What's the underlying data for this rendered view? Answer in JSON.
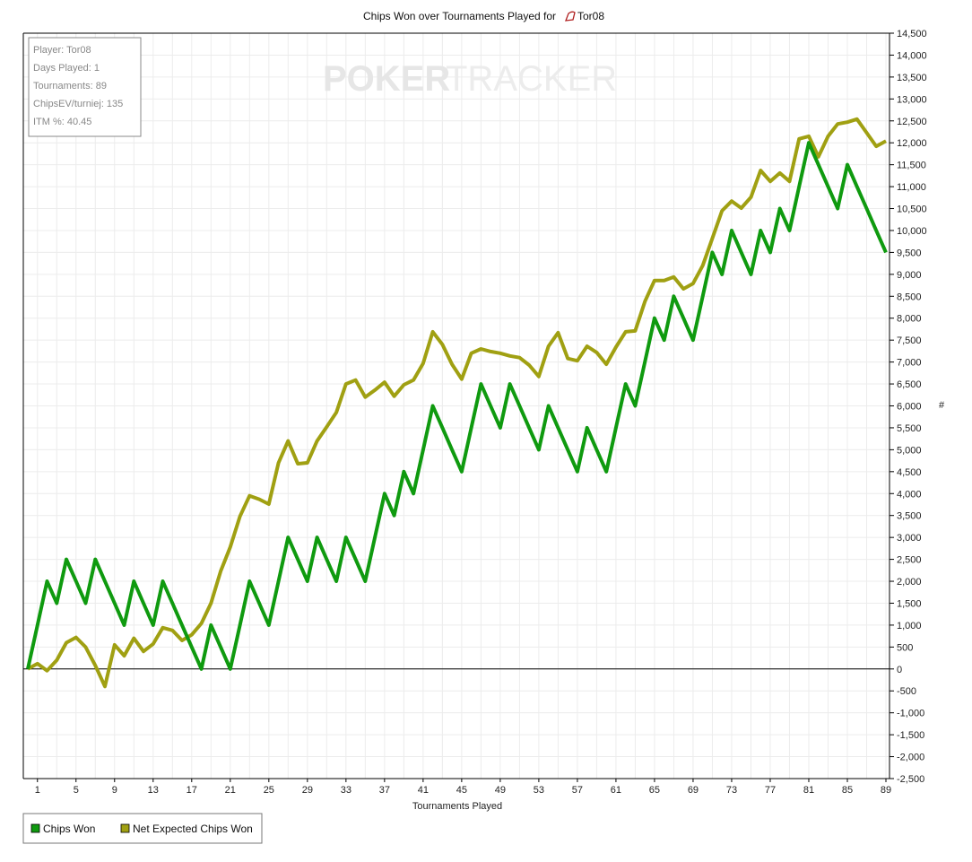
{
  "chart_data": {
    "type": "line",
    "title": "Chips Won over Tournaments Played for",
    "player_name": "Tor08",
    "xlabel": "Tournaments Played",
    "ylabel": "#",
    "xlim": [
      0,
      89
    ],
    "ylim": [
      -2500,
      14500
    ],
    "ytick_step": 500,
    "xticks": [
      1,
      5,
      9,
      13,
      17,
      21,
      25,
      29,
      33,
      37,
      41,
      45,
      49,
      53,
      57,
      61,
      65,
      69,
      73,
      77,
      81,
      85,
      89
    ],
    "grid": true,
    "legend_position": "bottom-left",
    "x": [
      0,
      1,
      2,
      3,
      4,
      5,
      6,
      7,
      8,
      9,
      10,
      11,
      12,
      13,
      14,
      15,
      16,
      17,
      18,
      19,
      20,
      21,
      22,
      23,
      24,
      25,
      26,
      27,
      28,
      29,
      30,
      31,
      32,
      33,
      34,
      35,
      36,
      37,
      38,
      39,
      40,
      41,
      42,
      43,
      44,
      45,
      46,
      47,
      48,
      49,
      50,
      51,
      52,
      53,
      54,
      55,
      56,
      57,
      58,
      59,
      60,
      61,
      62,
      63,
      64,
      65,
      66,
      67,
      68,
      69,
      70,
      71,
      72,
      73,
      74,
      75,
      76,
      77,
      78,
      79,
      80,
      81,
      82,
      83,
      84,
      85,
      86,
      87,
      88,
      89
    ],
    "series": [
      {
        "name": "Chips Won",
        "color": "#0f9a0f",
        "values": [
          0,
          1000,
          2000,
          1500,
          2500,
          2000,
          1500,
          2500,
          2000,
          1500,
          1000,
          2000,
          1500,
          1000,
          2000,
          1500,
          1000,
          500,
          0,
          1000,
          500,
          0,
          1000,
          2000,
          1500,
          1000,
          2000,
          3000,
          2500,
          2000,
          3000,
          2500,
          2000,
          3000,
          2500,
          2000,
          3000,
          4000,
          3500,
          4500,
          4000,
          5000,
          6000,
          5500,
          5000,
          4500,
          5500,
          6500,
          6000,
          5500,
          6500,
          6000,
          5500,
          5000,
          6000,
          5500,
          5000,
          4500,
          5500,
          5000,
          4500,
          5500,
          6500,
          6000,
          7000,
          8000,
          7500,
          8500,
          8000,
          7500,
          8500,
          9500,
          9000,
          10000,
          9500,
          9000,
          10000,
          9500,
          10500,
          10000,
          11000,
          12000,
          11500,
          11000,
          10500,
          11500,
          11000,
          10500,
          10000,
          9500
        ]
      },
      {
        "name": "Net Expected Chips Won",
        "color": "#a0a012",
        "values": [
          0,
          120,
          -40,
          200,
          600,
          720,
          500,
          80,
          -400,
          550,
          300,
          700,
          400,
          570,
          940,
          880,
          650,
          780,
          1040,
          1500,
          2230,
          2780,
          3480,
          3950,
          3870,
          3760,
          4700,
          5200,
          4680,
          4700,
          5200,
          5520,
          5850,
          6500,
          6590,
          6200,
          6360,
          6540,
          6220,
          6480,
          6590,
          6970,
          7690,
          7400,
          6950,
          6610,
          7200,
          7300,
          7240,
          7200,
          7140,
          7100,
          6930,
          6670,
          7360,
          7670,
          7080,
          7030,
          7360,
          7220,
          6950,
          7340,
          7690,
          7710,
          8380,
          8860,
          8860,
          8940,
          8670,
          8790,
          9200,
          9820,
          10450,
          10670,
          10510,
          10760,
          11370,
          11120,
          11310,
          11120,
          12090,
          12150,
          11680,
          12150,
          12430,
          12470,
          12540,
          12230,
          11920,
          12040
        ]
      }
    ]
  },
  "stats_box": {
    "player": "Player: Tor08",
    "days_played": "Days Played: 1",
    "tournaments": "Tournaments: 89",
    "chips_ev": "ChipsEV/turniej: 135",
    "itm": "ITM %: 40.45"
  },
  "watermark": {
    "bold": "POKER",
    "light": "TRACKER"
  },
  "colors": {
    "axis": "#000000",
    "grid": "#ececec",
    "zero_line": "#000000"
  }
}
